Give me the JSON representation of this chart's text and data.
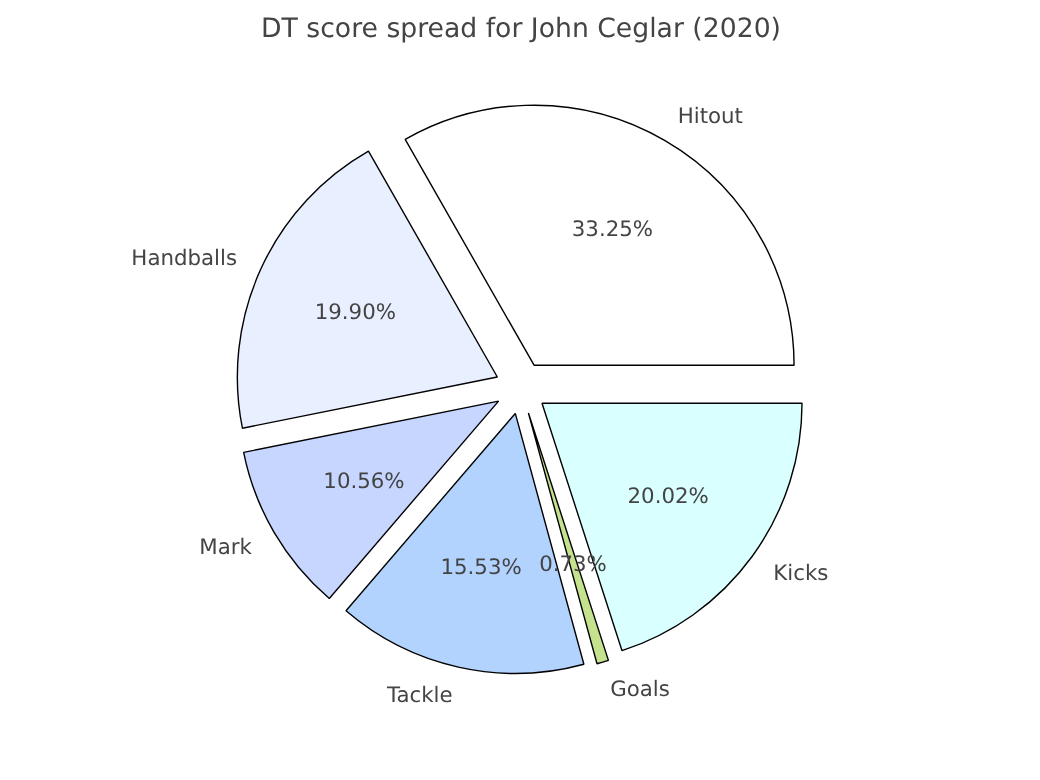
{
  "chart_data": {
    "type": "pie",
    "title": "DT score spread for John Ceglar (2020)",
    "categories": [
      "Hitout",
      "Handballs",
      "Mark",
      "Tackle",
      "Goals",
      "Kicks"
    ],
    "values": [
      33.25,
      19.9,
      10.56,
      15.53,
      0.73,
      20.02
    ],
    "colors": [
      "#ffffff",
      "#e8efff",
      "#c6d6ff",
      "#b3d3ff",
      "#c5e28f",
      "#d9ffff"
    ],
    "value_labels": [
      "33.25%",
      "19.90%",
      "10.56%",
      "15.53%",
      "0.73%",
      "20.02%"
    ]
  }
}
